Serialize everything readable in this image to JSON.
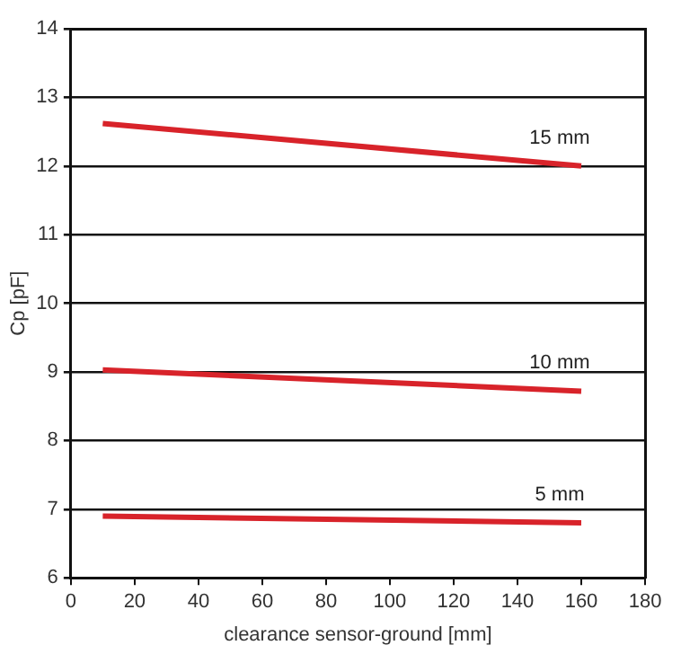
{
  "chart_data": {
    "type": "line",
    "xlabel": "clearance sensor-ground [mm]",
    "ylabel": "Cp [pF]",
    "x": [
      10,
      160
    ],
    "series": [
      {
        "name": "15 mm",
        "color": "#d8232a",
        "values": [
          12.62,
          12.0
        ]
      },
      {
        "name": "10 mm",
        "color": "#d8232a",
        "values": [
          9.03,
          8.72
        ]
      },
      {
        "name": "5 mm",
        "color": "#d8232a",
        "values": [
          6.9,
          6.8
        ]
      }
    ],
    "xlim": [
      0,
      180
    ],
    "xticks": [
      0,
      20,
      40,
      60,
      80,
      100,
      120,
      140,
      160,
      180
    ],
    "ylim": [
      6,
      14
    ],
    "yticks": [
      6,
      7,
      8,
      9,
      10,
      11,
      12,
      13,
      14
    ],
    "grid": "y",
    "legend": false,
    "marker": "none",
    "line_style": "solid"
  }
}
